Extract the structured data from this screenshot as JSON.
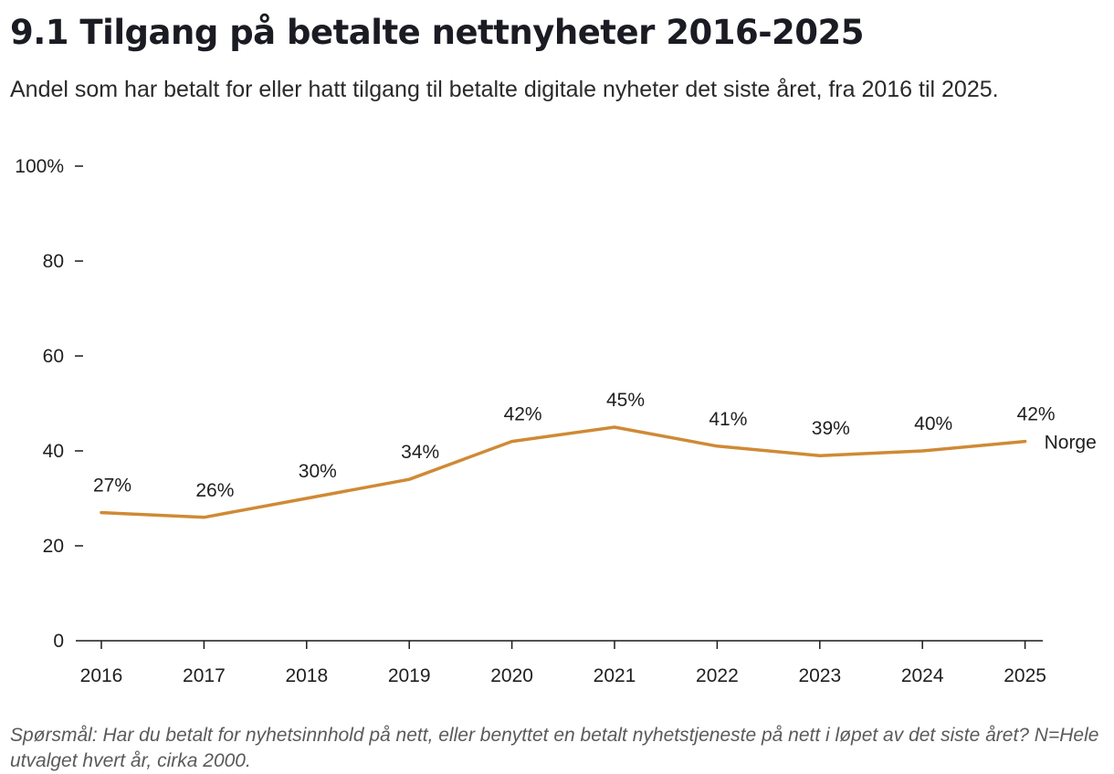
{
  "header": {
    "title": "9.1 Tilgang på betalte nettnyheter 2016-2025",
    "subtitle": "Andel som har betalt for eller hatt tilgang til betalte digitale nyheter det siste året, fra 2016 til 2025."
  },
  "footnote": "Spørsmål: Har du betalt for nyhetsinnhold på nett, eller benyttet en betalt nyhetstjeneste på nett i løpet av det siste året? N=Hele utvalget hvert år, cirka 2000.",
  "chart_data": {
    "type": "line",
    "title": "9.1 Tilgang på betalte nettnyheter 2016-2025",
    "subtitle": "Andel som har betalt for eller hatt tilgang til betalte digitale nyheter det siste året, fra 2016 til 2025.",
    "x": [
      "2016",
      "2017",
      "2018",
      "2019",
      "2020",
      "2021",
      "2022",
      "2023",
      "2024",
      "2025"
    ],
    "series": [
      {
        "name": "Norge",
        "values": [
          27,
          26,
          30,
          34,
          42,
          45,
          41,
          39,
          40,
          42
        ],
        "labels": [
          "27%",
          "26%",
          "30%",
          "34%",
          "42%",
          "45%",
          "41%",
          "39%",
          "40%",
          "42%"
        ],
        "color": "#cf8a35"
      }
    ],
    "ylim": [
      0,
      100
    ],
    "yticks": [
      0,
      20,
      40,
      60,
      80,
      100
    ],
    "ytick_labels": [
      "0",
      "20",
      "40",
      "60",
      "80",
      "100%"
    ],
    "grid": false,
    "legend": "series label at end of line",
    "axis_color": "#1a1a1a"
  }
}
